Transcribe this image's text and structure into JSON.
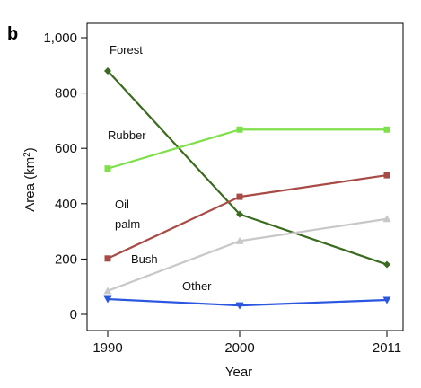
{
  "panel_label": "b",
  "chart_data": {
    "type": "line",
    "x": [
      1990,
      2000,
      2011
    ],
    "x_tick_labels": [
      "1990",
      "2000",
      "2011"
    ],
    "y_ticks": [
      0,
      200,
      400,
      600,
      800,
      1000
    ],
    "y_tick_labels": [
      "0",
      "200",
      "400",
      "600",
      "800",
      "1,000"
    ],
    "xlabel": "Year",
    "ylabel": "Area (km",
    "ylabel_sup": "2",
    "ylabel_end": ")",
    "ylim": [
      0,
      1000
    ],
    "grid": false,
    "series": [
      {
        "name": "Forest",
        "color": "#3a6b1e",
        "marker": "diamond",
        "values": [
          880,
          362,
          180
        ]
      },
      {
        "name": "Rubber",
        "color": "#7ee04a",
        "marker": "square",
        "values": [
          527,
          668,
          668
        ]
      },
      {
        "name": "Oil palm",
        "name_lines": [
          "Oil",
          "palm"
        ],
        "color": "#a84a45",
        "marker": "square",
        "values": [
          202,
          425,
          503
        ]
      },
      {
        "name": "Bush",
        "color": "#c8c8c8",
        "marker": "triangle-up",
        "values": [
          85,
          265,
          345
        ]
      },
      {
        "name": "Other",
        "color": "#2a56e0",
        "marker": "triangle-down",
        "values": [
          55,
          32,
          52
        ]
      }
    ]
  }
}
